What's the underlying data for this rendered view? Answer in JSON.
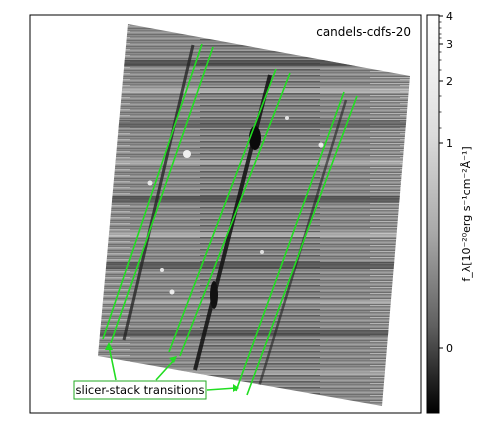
{
  "image": {
    "title": "candels-cdfs-20",
    "annotation": "slicer-stack transitions",
    "overlay_color": "#22dd22"
  },
  "colorbar": {
    "label": "f_λ[10⁻²⁰erg s⁻¹cm⁻²Å⁻¹]",
    "ticks": [
      "4",
      "3",
      "2",
      "1",
      "0"
    ],
    "colormap": "gray (light = high, dark = low)"
  }
}
